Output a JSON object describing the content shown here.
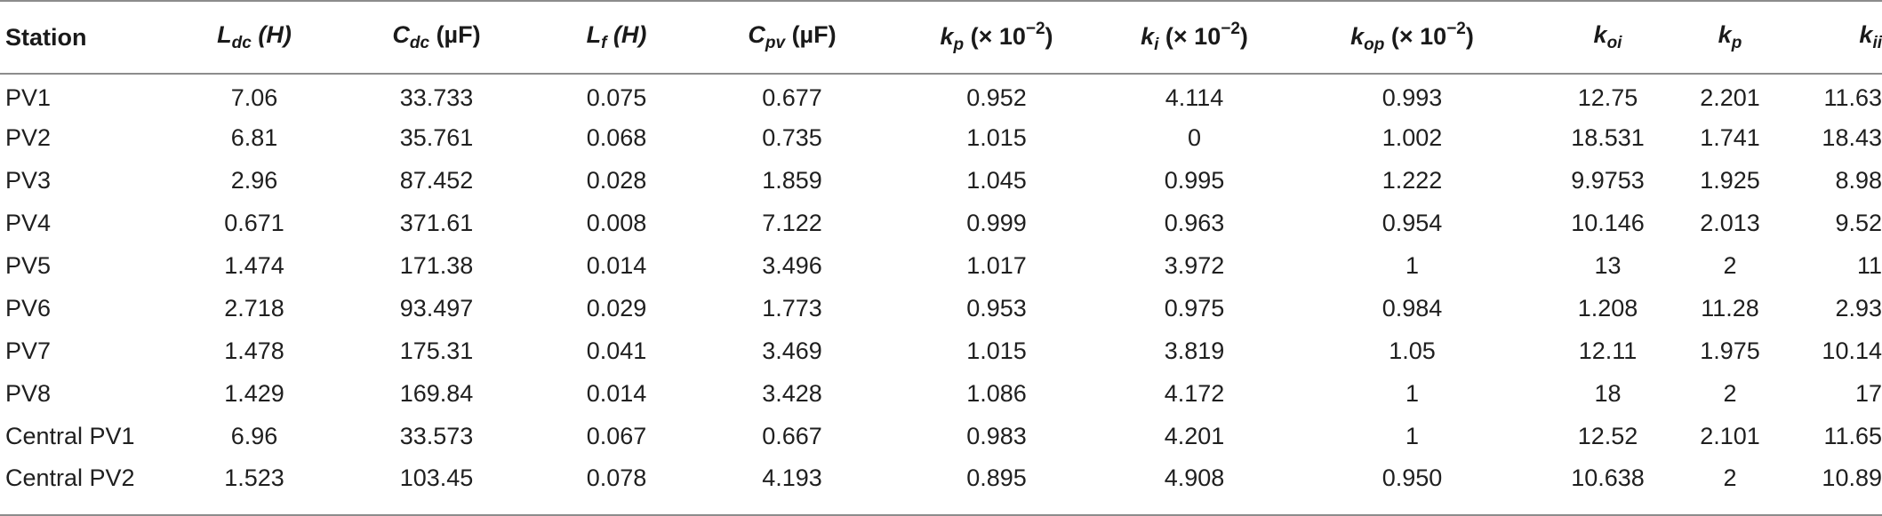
{
  "table": {
    "headers": [
      {
        "main": "Station",
        "sub": "",
        "unit": "",
        "sup": "",
        "tail": ""
      },
      {
        "main": "L",
        "sub": "dc",
        "unit": " (H)",
        "sup": "",
        "tail": ""
      },
      {
        "main": "C",
        "sub": "dc",
        "unit": " (µF)",
        "sup": "",
        "tail": ""
      },
      {
        "main": "L",
        "sub": "f",
        "unit": " (H)",
        "sup": "",
        "tail": ""
      },
      {
        "main": "C",
        "sub": "pv",
        "unit": " (µF)",
        "sup": "",
        "tail": ""
      },
      {
        "main": "k",
        "sub": "p",
        "unit": " (× 10",
        "sup": "−2",
        "tail": ")"
      },
      {
        "main": "k",
        "sub": "i",
        "unit": " (× 10",
        "sup": "−2",
        "tail": ")"
      },
      {
        "main": "k",
        "sub": "op",
        "unit": " (× 10",
        "sup": "−2",
        "tail": ")"
      },
      {
        "main": "k",
        "sub": "oi",
        "unit": "",
        "sup": "",
        "tail": ""
      },
      {
        "main": "k",
        "sub": "p",
        "unit": "",
        "sup": "",
        "tail": ""
      },
      {
        "main": "k",
        "sub": "ii",
        "unit": "",
        "sup": "",
        "tail": ""
      }
    ],
    "rows": [
      [
        "PV1",
        "7.06",
        "33.733",
        "0.075",
        "0.677",
        "0.952",
        "4.114",
        "0.993",
        "12.75",
        "2.201",
        "11.63"
      ],
      [
        "PV2",
        "6.81",
        "35.761",
        "0.068",
        "0.735",
        "1.015",
        "0",
        "1.002",
        "18.531",
        "1.741",
        "18.43"
      ],
      [
        "PV3",
        "2.96",
        "87.452",
        "0.028",
        "1.859",
        "1.045",
        "0.995",
        "1.222",
        "9.9753",
        "1.925",
        "8.98"
      ],
      [
        "PV4",
        "0.671",
        "371.61",
        "0.008",
        "7.122",
        "0.999",
        "0.963",
        "0.954",
        "10.146",
        "2.013",
        "9.52"
      ],
      [
        "PV5",
        "1.474",
        "171.38",
        "0.014",
        "3.496",
        "1.017",
        "3.972",
        "1",
        "13",
        "2",
        "11"
      ],
      [
        "PV6",
        "2.718",
        "93.497",
        "0.029",
        "1.773",
        "0.953",
        "0.975",
        "0.984",
        "1.208",
        "11.28",
        "2.93"
      ],
      [
        "PV7",
        "1.478",
        "175.31",
        "0.041",
        "3.469",
        "1.015",
        "3.819",
        "1.05",
        "12.11",
        "1.975",
        "10.14"
      ],
      [
        "PV8",
        "1.429",
        "169.84",
        "0.014",
        "3.428",
        "1.086",
        "4.172",
        "1",
        "18",
        "2",
        "17"
      ],
      [
        "Central PV1",
        "6.96",
        "33.573",
        "0.067",
        "0.667",
        "0.983",
        "4.201",
        "1",
        "12.52",
        "2.101",
        "11.65"
      ],
      [
        "Central PV2",
        "1.523",
        "103.45",
        "0.078",
        "4.193",
        "0.895",
        "4.908",
        "0.950",
        "10.638",
        "2",
        "10.89"
      ]
    ]
  }
}
